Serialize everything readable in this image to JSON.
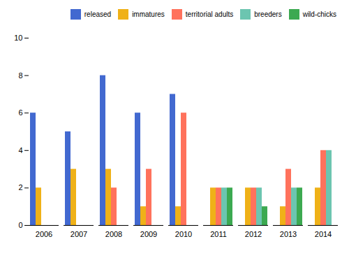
{
  "chart_data": {
    "type": "bar",
    "categories": [
      "2006",
      "2007",
      "2008",
      "2009",
      "2010",
      "2011",
      "2012",
      "2013",
      "2014"
    ],
    "series": [
      {
        "name": "released",
        "values": [
          6,
          5,
          8,
          6,
          7,
          0,
          0,
          0,
          0
        ]
      },
      {
        "name": "immatures",
        "values": [
          2,
          3,
          3,
          1,
          1,
          2,
          2,
          1,
          2
        ]
      },
      {
        "name": "territorial adults",
        "values": [
          0,
          0,
          2,
          3,
          6,
          2,
          2,
          3,
          4
        ]
      },
      {
        "name": "breeders",
        "values": [
          0,
          0,
          0,
          0,
          0,
          2,
          2,
          2,
          4
        ]
      },
      {
        "name": "wild-chicks",
        "values": [
          0,
          0,
          0,
          0,
          0,
          2,
          1,
          2,
          0
        ]
      }
    ],
    "ylim": [
      0,
      10
    ],
    "yticks": [
      0,
      2,
      4,
      6,
      8,
      10
    ],
    "legend": "top-right",
    "grid": false
  }
}
